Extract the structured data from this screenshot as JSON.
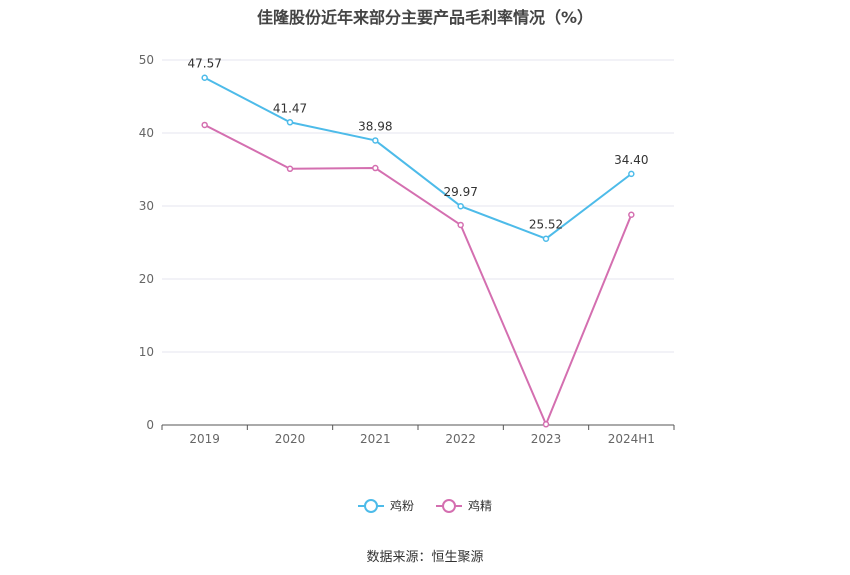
{
  "chart_data": {
    "type": "line",
    "title": "佳隆股份近年来部分主要产品毛利率情况（%）",
    "categories": [
      "2019",
      "2020",
      "2021",
      "2022",
      "2023",
      "2024H1"
    ],
    "ylim": [
      0,
      50
    ],
    "yticks": [
      0,
      10,
      20,
      30,
      40,
      50
    ],
    "grid": true,
    "legend_position": "bottom",
    "series": [
      {
        "name": "鸡粉",
        "color": "#4dbbe9",
        "values": [
          47.57,
          41.47,
          38.98,
          29.97,
          25.52,
          34.4
        ],
        "labels": [
          "47.57",
          "41.47",
          "38.98",
          "29.97",
          "25.52",
          "34.40"
        ]
      },
      {
        "name": "鸡精",
        "color": "#d46fb0",
        "values": [
          41.1,
          35.1,
          35.2,
          27.4,
          0.1,
          28.8
        ]
      }
    ]
  },
  "source": "数据来源：恒生聚源"
}
